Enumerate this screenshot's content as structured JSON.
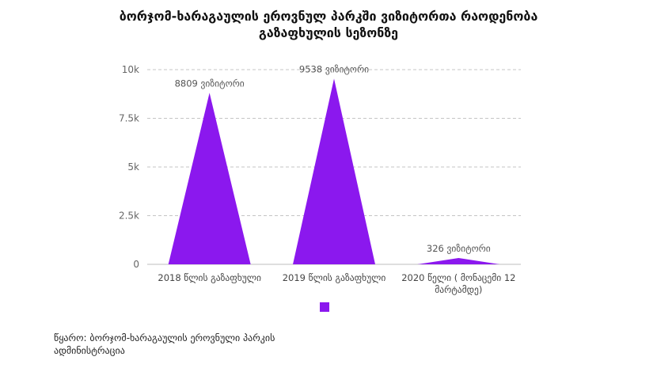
{
  "chart_data": {
    "type": "area",
    "title_lines": [
      "ბორჯომ-ხარაგაულის ეროვნულ პარკში ვიზიტორთა რაოდენობა",
      "გაზაფხულის სეზონზე"
    ],
    "categories": [
      [
        "2018 წლის გაზაფხული"
      ],
      [
        "2019 წლის გაზაფხული"
      ],
      [
        "2020 წელი ( მონაცემი 12",
        "მარტამდე)"
      ]
    ],
    "values": [
      8809,
      9538,
      326
    ],
    "data_labels": [
      "8809 ვიზიტორი",
      "9538 ვიზიტორი",
      "326 ვიზიტორი"
    ],
    "ylim": [
      0,
      10000
    ],
    "yticks": [
      {
        "value": 0,
        "label": "0"
      },
      {
        "value": 2500,
        "label": "2.5k"
      },
      {
        "value": 5000,
        "label": "5k"
      },
      {
        "value": 7500,
        "label": "7.5k"
      },
      {
        "value": 10000,
        "label": "10k"
      }
    ],
    "grid": true,
    "legend_position": "bottom",
    "color": "#8b18ee"
  },
  "source_lines": [
    "წყარო: ბორჯომ-ხარაგაულის ეროვნული პარკის",
    "ადმინისტრაცია"
  ]
}
